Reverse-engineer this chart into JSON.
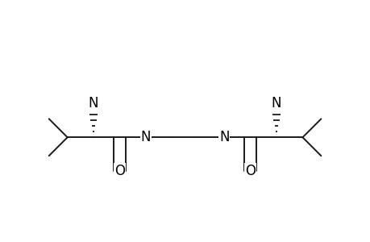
{
  "background": "#ffffff",
  "bond_color": "#1a1a1a",
  "lw": 1.4,
  "fs": 12,
  "xlim": [
    0.05,
    0.97
  ],
  "ylim": [
    0.22,
    0.88
  ]
}
